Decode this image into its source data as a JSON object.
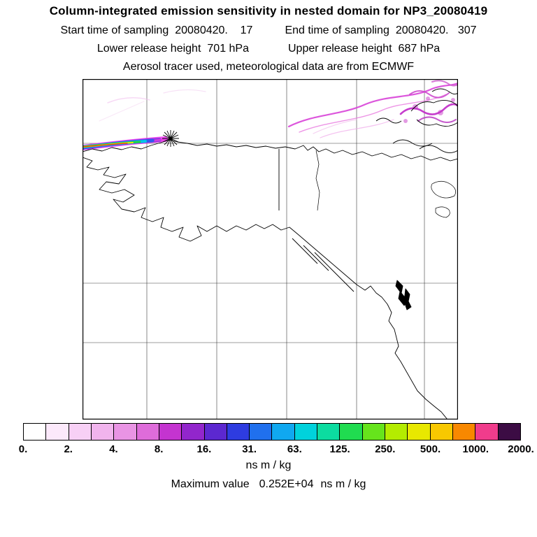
{
  "header": {
    "title": "Column-integrated emission sensitivity in nested domain for NP3_20080419",
    "sampling": {
      "start_label": "Start time of sampling",
      "start_value": "20080420.    17",
      "end_label": "End time of sampling",
      "end_value": "20080420.   307"
    },
    "release": {
      "lower_label": "Lower release height",
      "lower_value": "701 hPa",
      "upper_label": "Upper release height",
      "upper_value": "687 hPa"
    },
    "tracer_line": "Aerosol tracer used, meteorological data are from ECMWF"
  },
  "colorbar": {
    "tick_labels": [
      "0.",
      "2.",
      "4.",
      "8.",
      "16.",
      "31.",
      "63.",
      "125.",
      "250.",
      "500.",
      "1000.",
      "2000."
    ],
    "units_label": "ns m / kg",
    "segment_colors": [
      "#ffffff",
      "#fce9fb",
      "#f7d0f5",
      "#f1b4ed",
      "#e994e4",
      "#de6cda",
      "#c434d0",
      "#9226cc",
      "#5c28d0",
      "#2e3ce0",
      "#2070ee",
      "#10a8f0",
      "#00d2dc",
      "#0cdca0",
      "#20dc50",
      "#66e41c",
      "#b4ec00",
      "#e8e800",
      "#f8c800",
      "#f88800",
      "#f03c8c",
      "#3c0c44"
    ]
  },
  "footer": {
    "max_label": "Maximum value",
    "max_value": "0.252E+04",
    "max_units": "ns m / kg"
  },
  "chart_data": {
    "type": "heatmap",
    "title": "Column-integrated emission sensitivity in nested domain for NP3_20080419",
    "colorbar_boundaries": [
      0,
      2,
      4,
      8,
      16,
      31,
      63,
      125,
      250,
      500,
      1000,
      2000
    ],
    "units": "ns m / kg",
    "maximum_value": "0.252E+04 ns m / kg",
    "sampling_start": "20080420. 17",
    "sampling_end": "20080420. 307",
    "lower_release_height": "701 hPa",
    "upper_release_height": "687 hPa",
    "tracer": "Aerosol",
    "meteorology": "ECMWF",
    "map_region": "Alaska / NW Canada / NE Pacific",
    "marker": "star at release location on north coast of Alaska"
  }
}
